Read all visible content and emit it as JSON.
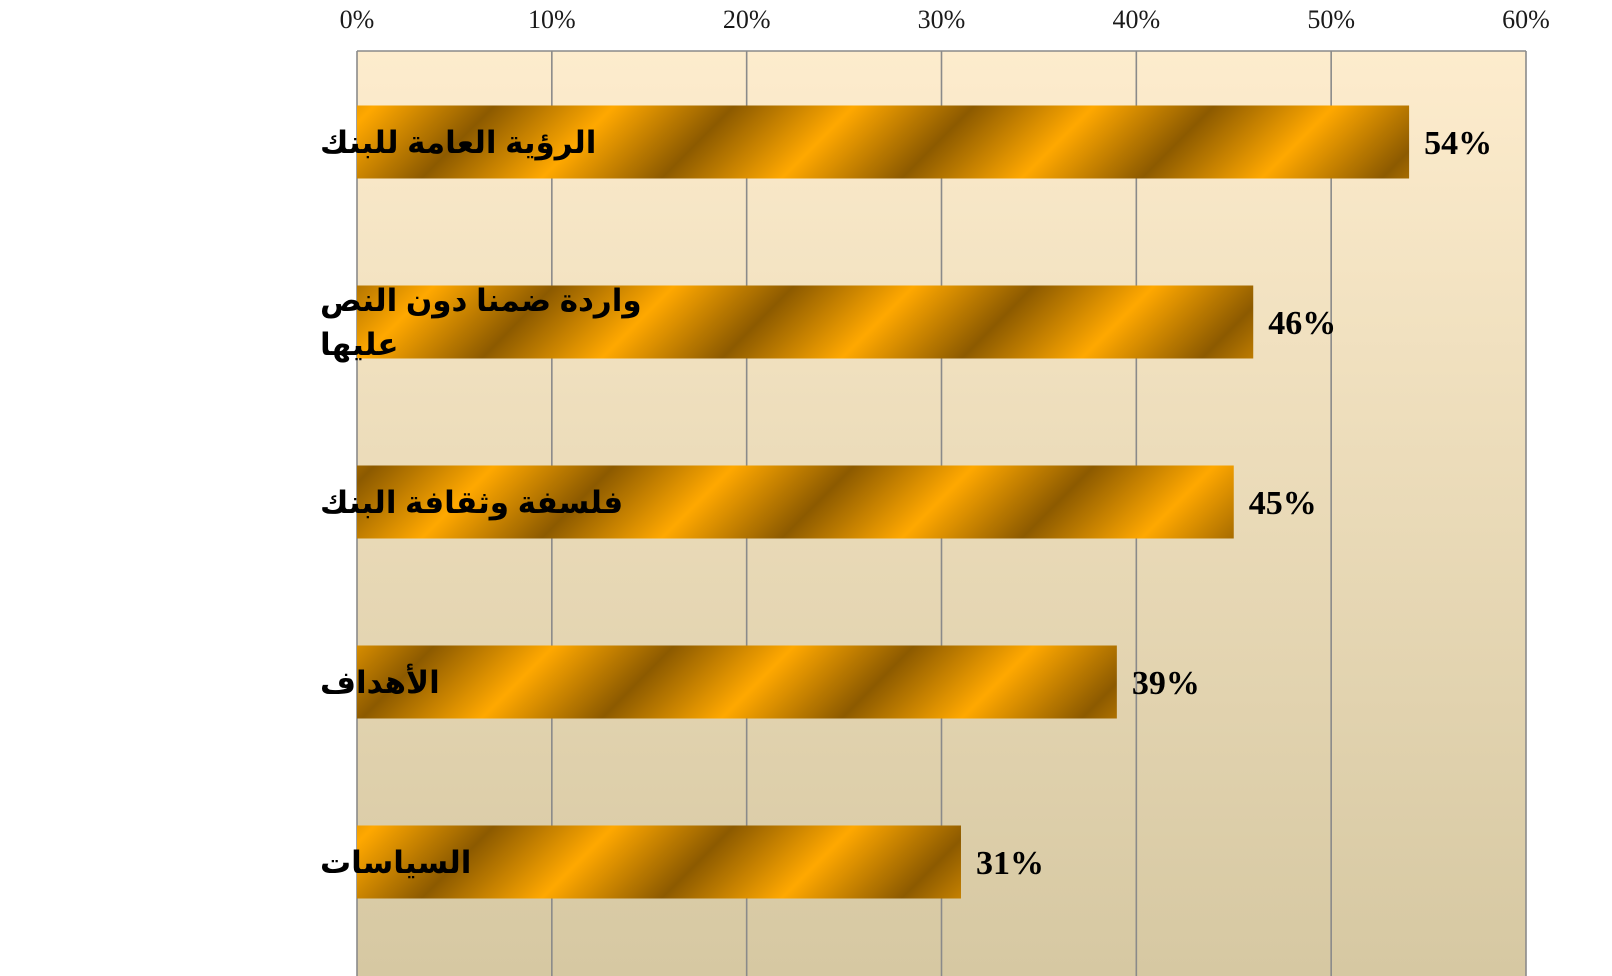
{
  "chart_data": {
    "type": "bar",
    "orientation": "horizontal",
    "title": "",
    "xlabel": "",
    "ylabel": "",
    "xlim": [
      0,
      60
    ],
    "x_ticks": [
      0,
      10,
      20,
      30,
      40,
      50,
      60
    ],
    "x_tick_labels": [
      "0%",
      "10%",
      "20%",
      "30%",
      "40%",
      "50%",
      "60%"
    ],
    "x_axis_position": "top",
    "grid": true,
    "legend": "none",
    "categories": [
      [
        "الرؤية العامة للبنك"
      ],
      [
        "واردة ضمنا دون النص",
        "عليها"
      ],
      [
        "فلسفة وثقافة البنك"
      ],
      [
        "الأهداف"
      ],
      [
        "السياسات"
      ]
    ],
    "values": [
      54,
      46,
      45,
      39,
      31
    ],
    "data_labels": [
      "54%",
      "46%",
      "45%",
      "39%",
      "31%"
    ]
  },
  "colors": {
    "plot_bg_top": "#fdeccd",
    "plot_bg_bottom": "#d6c8a2",
    "grid": "#8a8a8a",
    "bar_light": "#ffa800",
    "bar_dark": "#8c5a00",
    "text": "#000000"
  }
}
